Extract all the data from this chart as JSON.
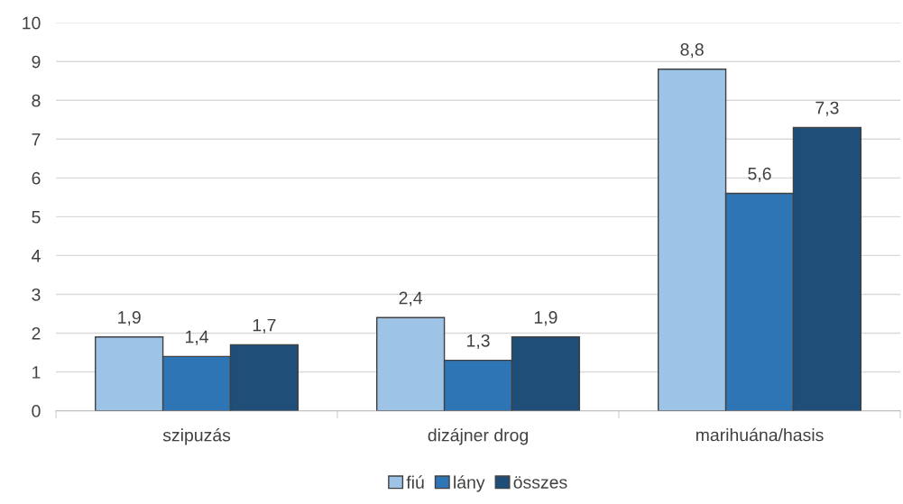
{
  "chart_data": {
    "type": "bar",
    "categories": [
      "szipuzás",
      "dizájner drog",
      "marihuána/hasis"
    ],
    "series": [
      {
        "name": "fiú",
        "color": "#9dc3e6",
        "values": [
          1.9,
          2.4,
          8.8
        ],
        "value_labels": [
          "1,9",
          "2,4",
          "8,8"
        ]
      },
      {
        "name": "lány",
        "color": "#2e75b6",
        "values": [
          1.4,
          1.3,
          5.6
        ],
        "value_labels": [
          "1,4",
          "1,3",
          "5,6"
        ]
      },
      {
        "name": "összes",
        "color": "#1f4e79",
        "values": [
          1.7,
          1.9,
          7.3
        ],
        "value_labels": [
          "1,7",
          "1,9",
          "7,3"
        ]
      }
    ],
    "ylim": [
      0,
      10
    ],
    "yticks": [
      0,
      1,
      2,
      3,
      4,
      5,
      6,
      7,
      8,
      9,
      10
    ],
    "grid": "y",
    "legend": "bottom"
  }
}
